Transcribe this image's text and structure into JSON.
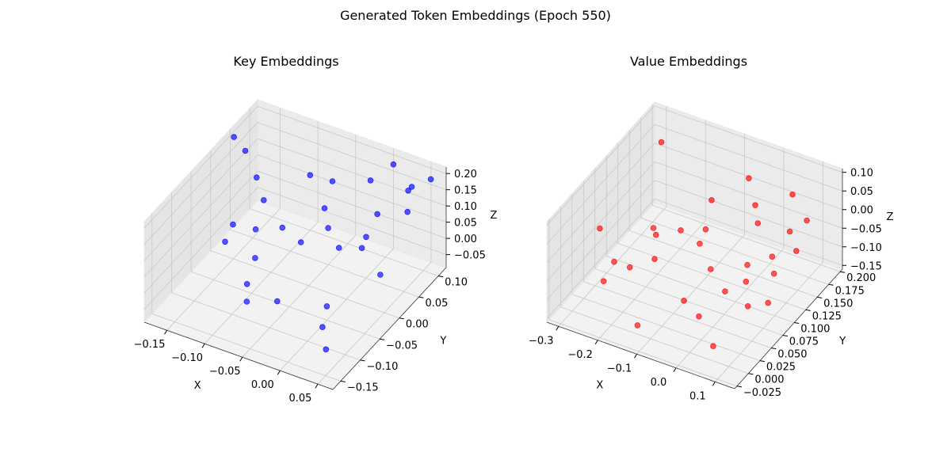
{
  "figure": {
    "suptitle": "Generated Token Embeddings (Epoch 550)"
  },
  "chart_data": [
    {
      "type": "scatter3d",
      "title": "Key Embeddings",
      "xlabel": "X",
      "ylabel": "Y",
      "zlabel": "Z",
      "xlim": [
        -0.18,
        0.07
      ],
      "ylim": [
        -0.17,
        0.12
      ],
      "zlim": [
        -0.09,
        0.22
      ],
      "xticks": [
        {
          "v": -0.15,
          "label": "−0.15"
        },
        {
          "v": -0.1,
          "label": "−0.10"
        },
        {
          "v": -0.05,
          "label": "−0.05"
        },
        {
          "v": 0.0,
          "label": "0.00"
        },
        {
          "v": 0.05,
          "label": "0.05"
        }
      ],
      "yticks": [
        {
          "v": -0.15,
          "label": "−0.15"
        },
        {
          "v": -0.1,
          "label": "−0.10"
        },
        {
          "v": -0.05,
          "label": "−0.05"
        },
        {
          "v": 0.0,
          "label": "0.00"
        },
        {
          "v": 0.05,
          "label": "0.05"
        },
        {
          "v": 0.1,
          "label": "0.10"
        }
      ],
      "zticks": [
        {
          "v": -0.05,
          "label": "−0.05"
        },
        {
          "v": 0.0,
          "label": "0.00"
        },
        {
          "v": 0.05,
          "label": "0.05"
        },
        {
          "v": 0.1,
          "label": "0.10"
        },
        {
          "v": 0.15,
          "label": "0.15"
        },
        {
          "v": 0.2,
          "label": "0.20"
        }
      ],
      "color": "#0000ff",
      "points": [
        [
          -0.175,
          0.05,
          0.2
        ],
        [
          -0.16,
          0.05,
          0.17
        ],
        [
          -0.145,
          0.05,
          0.1
        ],
        [
          -0.14,
          -0.02,
          0.05
        ],
        [
          -0.135,
          -0.05,
          0.04
        ],
        [
          -0.12,
          0.02,
          0.09
        ],
        [
          -0.11,
          -0.02,
          0.06
        ],
        [
          -0.1,
          0.1,
          0.08
        ],
        [
          -0.09,
          -0.06,
          0.04
        ],
        [
          -0.085,
          0.0,
          0.06
        ],
        [
          -0.08,
          -0.1,
          0.02
        ],
        [
          -0.07,
          -0.12,
          0.0
        ],
        [
          -0.06,
          0.08,
          0.12
        ],
        [
          -0.055,
          0.05,
          0.08
        ],
        [
          -0.05,
          -0.02,
          0.07
        ],
        [
          -0.045,
          0.04,
          0.04
        ],
        [
          -0.04,
          -0.1,
          0.0
        ],
        [
          -0.02,
          0.1,
          0.13
        ],
        [
          -0.01,
          0.0,
          0.06
        ],
        [
          -0.005,
          0.06,
          0.02
        ],
        [
          0.0,
          0.12,
          0.17
        ],
        [
          0.005,
          -0.06,
          -0.03
        ],
        [
          0.01,
          0.02,
          0.05
        ],
        [
          0.015,
          0.05,
          0.12
        ],
        [
          0.02,
          -0.1,
          -0.03
        ],
        [
          0.03,
          0.1,
          0.14
        ],
        [
          0.035,
          -0.12,
          -0.06
        ],
        [
          0.045,
          0.08,
          0.19
        ],
        [
          0.05,
          -0.01,
          0.04
        ],
        [
          0.055,
          0.05,
          0.16
        ],
        [
          0.06,
          0.1,
          0.2
        ]
      ]
    },
    {
      "type": "scatter3d",
      "title": "Value Embeddings",
      "xlabel": "X",
      "ylabel": "Y",
      "zlabel": "Z",
      "xlim": [
        -0.33,
        0.15
      ],
      "ylim": [
        -0.03,
        0.205
      ],
      "zlim": [
        -0.16,
        0.11
      ],
      "xticks": [
        {
          "v": -0.3,
          "label": "−0.3"
        },
        {
          "v": -0.2,
          "label": "−0.2"
        },
        {
          "v": -0.1,
          "label": "−0.1"
        },
        {
          "v": 0.0,
          "label": "0.0"
        },
        {
          "v": 0.1,
          "label": "0.1"
        }
      ],
      "yticks": [
        {
          "v": -0.025,
          "label": "−0.025"
        },
        {
          "v": 0.0,
          "label": "0.000"
        },
        {
          "v": 0.025,
          "label": "0.025"
        },
        {
          "v": 0.05,
          "label": "0.050"
        },
        {
          "v": 0.075,
          "label": "0.075"
        },
        {
          "v": 0.1,
          "label": "0.100"
        },
        {
          "v": 0.125,
          "label": "0.125"
        },
        {
          "v": 0.15,
          "label": "0.150"
        },
        {
          "v": 0.175,
          "label": "0.175"
        },
        {
          "v": 0.2,
          "label": "0.200"
        }
      ],
      "zticks": [
        {
          "v": -0.15,
          "label": "−0.15"
        },
        {
          "v": -0.1,
          "label": "−0.10"
        },
        {
          "v": -0.05,
          "label": "−0.05"
        },
        {
          "v": 0.0,
          "label": "0.00"
        },
        {
          "v": 0.05,
          "label": "0.05"
        },
        {
          "v": 0.1,
          "label": "0.10"
        }
      ],
      "color": "#ff0000",
      "points": [
        [
          -0.3,
          0.06,
          -0.02
        ],
        [
          -0.26,
          0.16,
          0.09
        ],
        [
          -0.24,
          0.04,
          -0.06
        ],
        [
          -0.22,
          0.0,
          -0.05
        ],
        [
          -0.21,
          0.1,
          -0.04
        ],
        [
          -0.2,
          0.04,
          -0.06
        ],
        [
          -0.18,
          0.08,
          -0.02
        ],
        [
          -0.16,
          0.06,
          -0.05
        ],
        [
          -0.14,
          0.1,
          -0.02
        ],
        [
          -0.12,
          0.15,
          0.0
        ],
        [
          -0.11,
          -0.02,
          -0.1
        ],
        [
          -0.1,
          0.12,
          -0.03
        ],
        [
          -0.08,
          0.09,
          -0.02
        ],
        [
          -0.06,
          0.18,
          0.04
        ],
        [
          -0.05,
          0.03,
          -0.08
        ],
        [
          -0.04,
          0.08,
          -0.06
        ],
        [
          -0.02,
          0.16,
          0.01
        ],
        [
          0.0,
          0.02,
          -0.09
        ],
        [
          0.01,
          0.14,
          0.0
        ],
        [
          0.02,
          0.06,
          -0.07
        ],
        [
          0.03,
          0.1,
          -0.05
        ],
        [
          0.04,
          0.19,
          0.02
        ],
        [
          0.05,
          0.08,
          -0.06
        ],
        [
          0.06,
          0.0,
          -0.12
        ],
        [
          0.07,
          0.12,
          -0.04
        ],
        [
          0.08,
          0.15,
          -0.01
        ],
        [
          0.09,
          0.05,
          -0.07
        ],
        [
          0.1,
          0.17,
          0.0
        ],
        [
          0.11,
          0.09,
          -0.03
        ],
        [
          0.12,
          0.13,
          -0.02
        ],
        [
          0.13,
          0.06,
          -0.06
        ]
      ]
    }
  ]
}
